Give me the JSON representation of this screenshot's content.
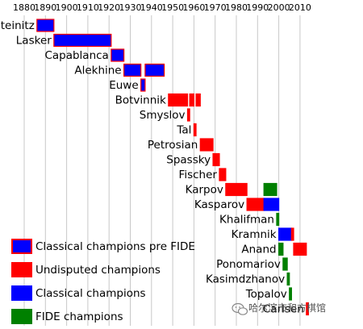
{
  "chart_data": {
    "type": "timeline",
    "title": "",
    "xlabel": "",
    "ylabel": "",
    "xlim": [
      1880,
      2014
    ],
    "x_ticks": [
      1880,
      1890,
      1900,
      1910,
      1920,
      1930,
      1940,
      1950,
      1960,
      1970,
      1980,
      1990,
      2000,
      2010
    ],
    "grid": true,
    "categories": {
      "classical_pre_fide": {
        "label": "Classical champions pre FIDE",
        "color": "#0000ff",
        "border": "#ff0000"
      },
      "undisputed": {
        "label": "Undisputed champions",
        "color": "#ff0000",
        "border": "#ff0000"
      },
      "classical": {
        "label": "Classical champions",
        "color": "#0000ff",
        "border": "#0000ff"
      },
      "fide": {
        "label": "FIDE champions",
        "color": "#008000",
        "border": "#008000"
      }
    },
    "legend": [
      "classical_pre_fide",
      "undisputed",
      "classical",
      "fide"
    ],
    "legend_position": "bottom-left",
    "champions": [
      {
        "name": "Steinitz",
        "reigns": [
          {
            "start": 1886,
            "end": 1894,
            "category": "classical_pre_fide"
          }
        ]
      },
      {
        "name": "Lasker",
        "reigns": [
          {
            "start": 1894,
            "end": 1921,
            "category": "classical_pre_fide"
          }
        ]
      },
      {
        "name": "Capablanca",
        "reigns": [
          {
            "start": 1921,
            "end": 1927,
            "category": "classical_pre_fide"
          }
        ]
      },
      {
        "name": "Alekhine",
        "reigns": [
          {
            "start": 1927,
            "end": 1935,
            "category": "classical_pre_fide"
          },
          {
            "start": 1937,
            "end": 1946,
            "category": "classical_pre_fide"
          }
        ]
      },
      {
        "name": "Euwe",
        "reigns": [
          {
            "start": 1935,
            "end": 1937,
            "category": "classical_pre_fide"
          }
        ]
      },
      {
        "name": "Botvinnik",
        "reigns": [
          {
            "start": 1948,
            "end": 1957,
            "category": "undisputed"
          },
          {
            "start": 1958,
            "end": 1960,
            "category": "undisputed"
          },
          {
            "start": 1961,
            "end": 1963,
            "category": "undisputed"
          }
        ]
      },
      {
        "name": "Smyslov",
        "reigns": [
          {
            "start": 1957,
            "end": 1958,
            "category": "undisputed"
          }
        ]
      },
      {
        "name": "Tal",
        "reigns": [
          {
            "start": 1960,
            "end": 1961,
            "category": "undisputed"
          }
        ]
      },
      {
        "name": "Petrosian",
        "reigns": [
          {
            "start": 1963,
            "end": 1969,
            "category": "undisputed"
          }
        ]
      },
      {
        "name": "Spassky",
        "reigns": [
          {
            "start": 1969,
            "end": 1972,
            "category": "undisputed"
          }
        ]
      },
      {
        "name": "Fischer",
        "reigns": [
          {
            "start": 1972,
            "end": 1975,
            "category": "undisputed"
          }
        ]
      },
      {
        "name": "Karpov",
        "reigns": [
          {
            "start": 1975,
            "end": 1985,
            "category": "undisputed"
          },
          {
            "start": 1993,
            "end": 1999,
            "category": "fide"
          }
        ]
      },
      {
        "name": "Kasparov",
        "reigns": [
          {
            "start": 1985,
            "end": 1993,
            "category": "undisputed"
          },
          {
            "start": 1993,
            "end": 2000,
            "category": "classical"
          }
        ]
      },
      {
        "name": "Khalifman",
        "reigns": [
          {
            "start": 1999,
            "end": 2000,
            "category": "fide"
          }
        ]
      },
      {
        "name": "Kramnik",
        "reigns": [
          {
            "start": 2000,
            "end": 2006,
            "category": "classical"
          },
          {
            "start": 2006,
            "end": 2007,
            "category": "undisputed"
          }
        ]
      },
      {
        "name": "Anand",
        "reigns": [
          {
            "start": 2000,
            "end": 2002,
            "category": "fide"
          },
          {
            "start": 2007,
            "end": 2013,
            "category": "undisputed"
          }
        ]
      },
      {
        "name": "Ponomariov",
        "reigns": [
          {
            "start": 2002,
            "end": 2004,
            "category": "fide"
          }
        ]
      },
      {
        "name": "Kasimdzhanov",
        "reigns": [
          {
            "start": 2004,
            "end": 2005,
            "category": "fide"
          }
        ]
      },
      {
        "name": "Topalov",
        "reigns": [
          {
            "start": 2005,
            "end": 2006,
            "category": "fide"
          }
        ]
      },
      {
        "name": "Carlsen",
        "reigns": [
          {
            "start": 2013,
            "end": 2014,
            "category": "undisputed"
          }
        ]
      }
    ]
  },
  "watermark": {
    "text": "哈尔滨市和方棋馆",
    "icon": "wechat-icon"
  }
}
